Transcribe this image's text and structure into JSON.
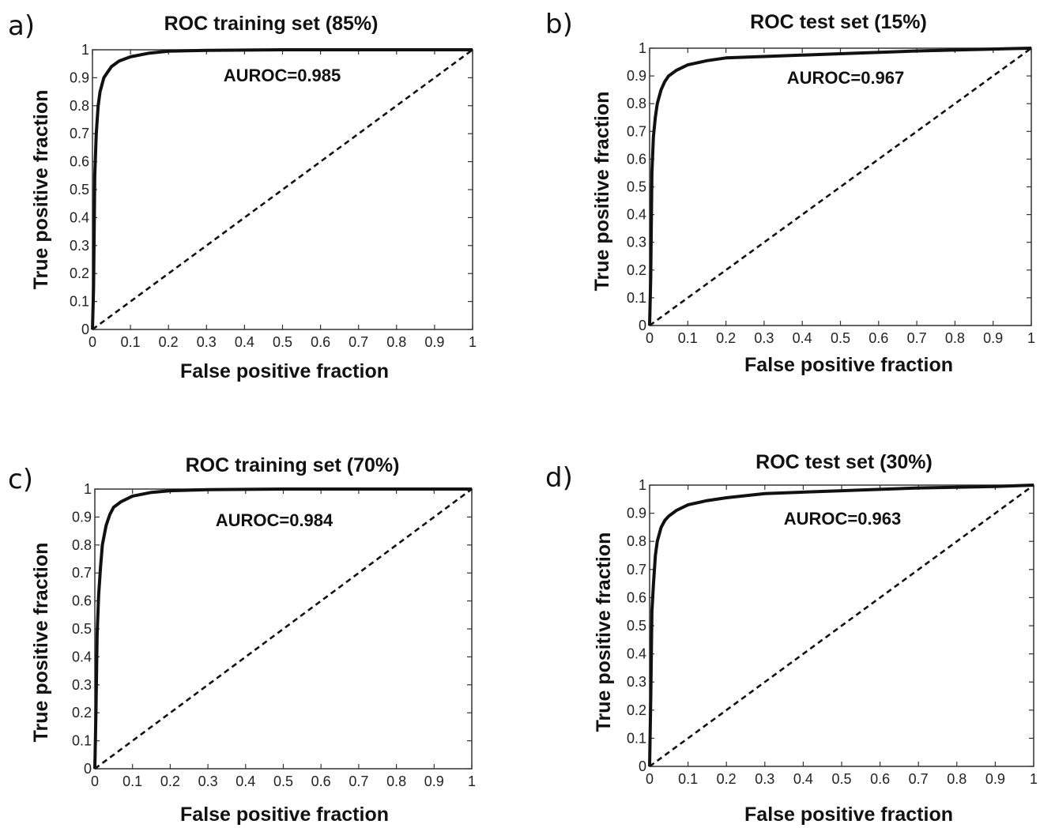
{
  "chart_data": [
    {
      "panel_label": "a)",
      "type": "line",
      "title": "ROC training set (85%)",
      "xlabel": "False positive fraction",
      "ylabel": "True positive fraction",
      "xlim": [
        0,
        1
      ],
      "ylim": [
        0,
        1
      ],
      "xticks": [
        "0",
        "0.1",
        "0.2",
        "0.3",
        "0.4",
        "0.5",
        "0.6",
        "0.7",
        "0.8",
        "0.9",
        "1"
      ],
      "yticks": [
        "0",
        "0.1",
        "0.2",
        "0.3",
        "0.4",
        "0.5",
        "0.6",
        "0.7",
        "0.8",
        "0.9",
        "1"
      ],
      "annotation": "AUROC=0.985",
      "grid": false,
      "series": [
        {
          "style": "solid",
          "x": [
            0,
            0.003,
            0.006,
            0.01,
            0.015,
            0.02,
            0.03,
            0.04,
            0.05,
            0.07,
            0.1,
            0.15,
            0.2,
            0.3,
            0.5,
            0.7,
            1.0
          ],
          "y": [
            0,
            0.15,
            0.55,
            0.7,
            0.8,
            0.85,
            0.9,
            0.92,
            0.94,
            0.96,
            0.975,
            0.988,
            0.995,
            0.998,
            1.0,
            1.0,
            1.0
          ]
        },
        {
          "style": "dashed",
          "x": [
            0,
            1
          ],
          "y": [
            0,
            1
          ]
        }
      ]
    },
    {
      "panel_label": "b)",
      "type": "line",
      "title": "ROC test set (15%)",
      "xlabel": "False positive fraction",
      "ylabel": "True positive fraction",
      "xlim": [
        0,
        1
      ],
      "ylim": [
        0,
        1
      ],
      "xticks": [
        "0",
        "0.1",
        "0.2",
        "0.3",
        "0.4",
        "0.5",
        "0.6",
        "0.7",
        "0.8",
        "0.9",
        "1"
      ],
      "yticks": [
        "0",
        "0.1",
        "0.2",
        "0.3",
        "0.4",
        "0.5",
        "0.6",
        "0.7",
        "0.8",
        "0.9",
        "1"
      ],
      "annotation": "AUROC=0.967",
      "grid": false,
      "series": [
        {
          "style": "solid",
          "x": [
            0,
            0.003,
            0.006,
            0.01,
            0.015,
            0.02,
            0.03,
            0.04,
            0.05,
            0.07,
            0.1,
            0.15,
            0.2,
            0.3,
            0.5,
            0.7,
            0.9,
            1.0
          ],
          "y": [
            0,
            0.17,
            0.55,
            0.68,
            0.75,
            0.8,
            0.85,
            0.88,
            0.9,
            0.92,
            0.94,
            0.955,
            0.965,
            0.97,
            0.98,
            0.99,
            0.997,
            1.0
          ]
        },
        {
          "style": "dashed",
          "x": [
            0,
            1
          ],
          "y": [
            0,
            1
          ]
        }
      ]
    },
    {
      "panel_label": "c)",
      "type": "line",
      "title": "ROC training set (70%)",
      "xlabel": "False positive fraction",
      "ylabel": "True positive fraction",
      "xlim": [
        0,
        1
      ],
      "ylim": [
        0,
        1
      ],
      "xticks": [
        "0",
        "0.1",
        "0.2",
        "0.3",
        "0.4",
        "0.5",
        "0.6",
        "0.7",
        "0.8",
        "0.9",
        "1"
      ],
      "yticks": [
        "0",
        "0.1",
        "0.2",
        "0.3",
        "0.4",
        "0.5",
        "0.6",
        "0.7",
        "0.8",
        "0.9",
        "1"
      ],
      "annotation": "AUROC=0.984",
      "grid": false,
      "series": [
        {
          "style": "solid",
          "x": [
            0,
            0.003,
            0.006,
            0.01,
            0.015,
            0.02,
            0.03,
            0.04,
            0.05,
            0.07,
            0.1,
            0.15,
            0.2,
            0.3,
            0.5,
            0.7,
            1.0
          ],
          "y": [
            0,
            0.2,
            0.48,
            0.62,
            0.72,
            0.8,
            0.87,
            0.91,
            0.935,
            0.955,
            0.975,
            0.988,
            0.994,
            0.998,
            1.0,
            1.0,
            1.0
          ]
        },
        {
          "style": "dashed",
          "x": [
            0,
            1
          ],
          "y": [
            0,
            1
          ]
        }
      ]
    },
    {
      "panel_label": "d)",
      "type": "line",
      "title": "ROC test set (30%)",
      "xlabel": "False positive fraction",
      "ylabel": "True positive fraction",
      "xlim": [
        0,
        1
      ],
      "ylim": [
        0,
        1
      ],
      "xticks": [
        "0",
        "0.1",
        "0.2",
        "0.3",
        "0.4",
        "0.5",
        "0.6",
        "0.7",
        "0.8",
        "0.9",
        "1"
      ],
      "yticks": [
        "0",
        "0.1",
        "0.2",
        "0.3",
        "0.4",
        "0.5",
        "0.6",
        "0.7",
        "0.8",
        "0.9",
        "1"
      ],
      "annotation": "AUROC=0.963",
      "grid": false,
      "series": [
        {
          "style": "solid",
          "x": [
            0,
            0.003,
            0.006,
            0.01,
            0.015,
            0.02,
            0.03,
            0.04,
            0.05,
            0.07,
            0.1,
            0.15,
            0.2,
            0.3,
            0.5,
            0.7,
            0.9,
            1.0
          ],
          "y": [
            0,
            0.25,
            0.55,
            0.65,
            0.75,
            0.8,
            0.85,
            0.875,
            0.89,
            0.91,
            0.93,
            0.945,
            0.955,
            0.97,
            0.98,
            0.99,
            0.995,
            1.0
          ]
        },
        {
          "style": "dashed",
          "x": [
            0,
            1
          ],
          "y": [
            0,
            1
          ]
        }
      ]
    }
  ]
}
